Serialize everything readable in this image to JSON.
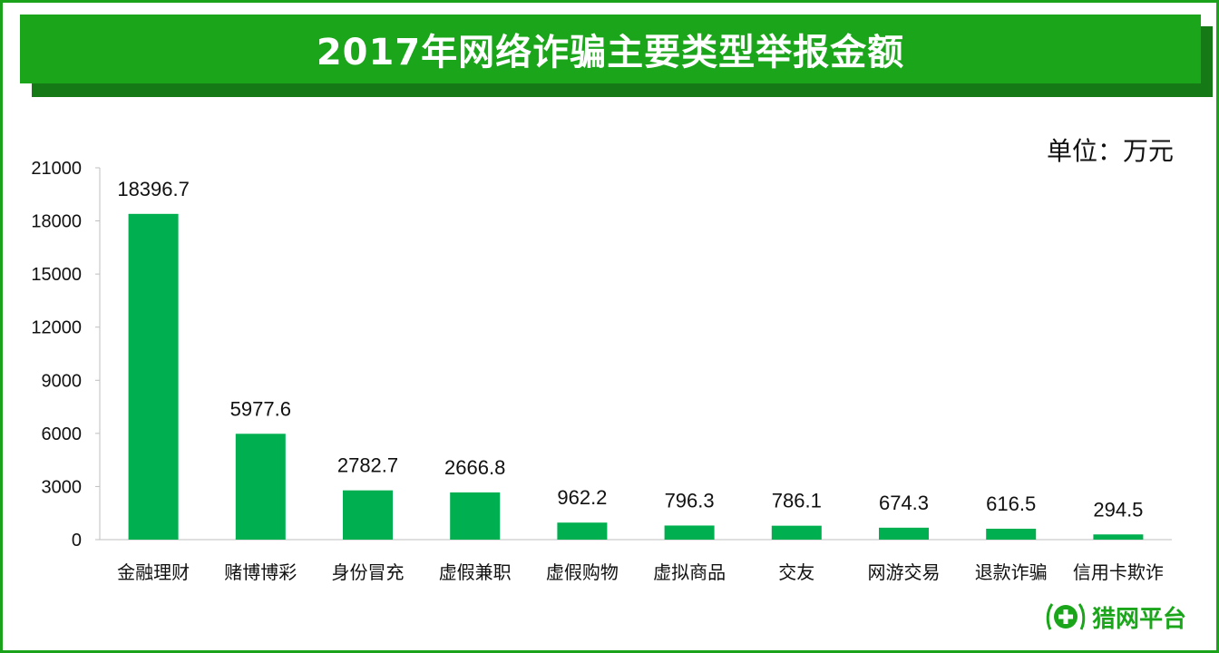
{
  "title": "2017年网络诈骗主要类型举报金额",
  "unit_label": "单位：万元",
  "logo_text": "猎网平台",
  "colors": {
    "frame": "#1aa31a",
    "title_bar": "#1aa51a",
    "bar": "#00b050",
    "text": "#111111"
  },
  "chart_data": {
    "type": "bar",
    "categories": [
      "金融理财",
      "赌博博彩",
      "身份冒充",
      "虚假兼职",
      "虚假购物",
      "虚拟商品",
      "交友",
      "网游交易",
      "退款诈骗",
      "信用卡欺诈"
    ],
    "values": [
      18396.7,
      5977.6,
      2782.7,
      2666.8,
      962.2,
      796.3,
      786.1,
      674.3,
      616.5,
      294.5
    ],
    "value_labels": [
      "18396.7",
      "5977.6",
      "2782.7",
      "2666.8",
      "962.2",
      "796.3",
      "786.1",
      "674.3",
      "616.5",
      "294.5"
    ],
    "yticks": [
      "0",
      "3000",
      "6000",
      "9000",
      "12000",
      "15000",
      "18000",
      "21000"
    ],
    "ylim": [
      0,
      21000
    ],
    "grid": false,
    "legend": "none"
  }
}
